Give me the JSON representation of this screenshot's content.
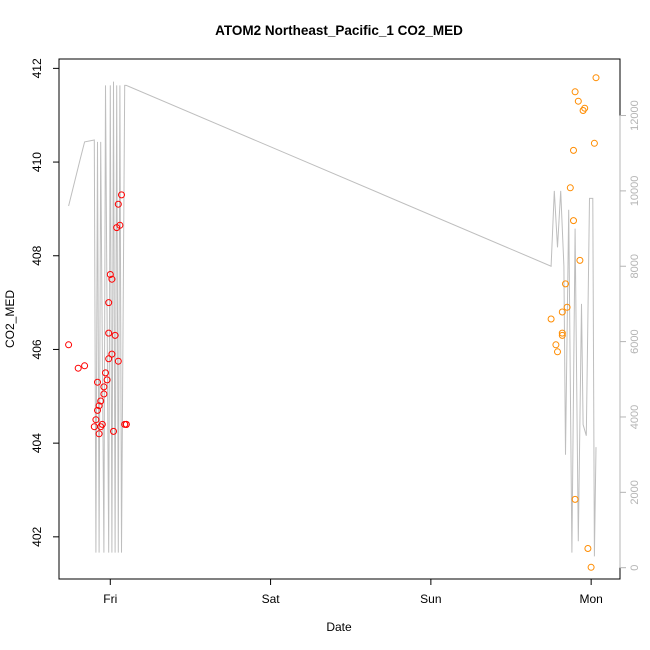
{
  "chart_data": {
    "type": "scatter",
    "title": "ATOM2 Northeast_Pacific_1 CO2_MED",
    "xlabel": "Date",
    "ylabel": "CO2_MED",
    "x_axis": {
      "unit": "days",
      "lim": [
        -0.32,
        3.18
      ],
      "ticks": [
        {
          "value": 0,
          "label": "Fri"
        },
        {
          "value": 1,
          "label": "Sat"
        },
        {
          "value": 2,
          "label": "Sun"
        },
        {
          "value": 3,
          "label": "Mon"
        }
      ]
    },
    "y_axis_left": {
      "lim": [
        401.1,
        412.2
      ],
      "ticks": [
        402,
        404,
        406,
        408,
        410,
        412
      ]
    },
    "y_axis_right": {
      "lim": [
        -300,
        13500
      ],
      "ticks": [
        0,
        2000,
        4000,
        6000,
        8000,
        10000,
        12000
      ],
      "color": "#b4b4b4"
    },
    "series": [
      {
        "color": "#ff0000",
        "marker": "open-circle",
        "x": [
          -0.26,
          -0.2,
          -0.16,
          -0.1,
          -0.09,
          -0.08,
          -0.08,
          -0.07,
          -0.07,
          -0.06,
          -0.06,
          -0.05,
          -0.04,
          -0.04,
          -0.03,
          -0.02,
          -0.01,
          -0.01,
          -0.01,
          0.0,
          0.01,
          0.01,
          0.02,
          0.03,
          0.04,
          0.05,
          0.05,
          0.06,
          0.07,
          0.09,
          0.1,
          0.1
        ],
        "y": [
          406.1,
          405.6,
          405.65,
          404.35,
          404.5,
          404.7,
          405.3,
          404.8,
          404.2,
          404.35,
          404.9,
          404.4,
          405.2,
          405.05,
          405.5,
          405.35,
          405.8,
          406.35,
          407.0,
          407.6,
          407.5,
          405.9,
          404.25,
          406.3,
          408.6,
          409.1,
          405.75,
          408.65,
          409.3,
          404.4,
          404.4,
          404.4
        ]
      },
      {
        "color": "#ff8c00",
        "marker": "open-circle",
        "x": [
          2.75,
          2.78,
          2.79,
          2.82,
          2.82,
          2.82,
          2.84,
          2.85,
          2.87,
          2.89,
          2.89,
          2.9,
          2.9,
          2.92,
          2.93,
          2.95,
          2.96,
          2.98,
          3.0,
          3.02,
          3.03
        ],
        "y": [
          406.65,
          406.1,
          405.95,
          406.3,
          406.35,
          406.8,
          407.4,
          406.9,
          409.45,
          410.25,
          408.75,
          402.8,
          411.5,
          411.3,
          407.9,
          411.1,
          411.15,
          401.75,
          401.35,
          410.4,
          411.8
        ]
      }
    ],
    "secondary_line": {
      "axis": "right",
      "color": "#bebebe",
      "x": [
        -0.26,
        -0.19,
        -0.16,
        -0.1,
        -0.09,
        -0.08,
        -0.07,
        -0.06,
        -0.04,
        -0.03,
        -0.01,
        0.0,
        0.01,
        0.02,
        0.03,
        0.04,
        0.05,
        0.06,
        0.07,
        0.09,
        0.1,
        2.75,
        2.77,
        2.79,
        2.81,
        2.83,
        2.84,
        2.86,
        2.88,
        2.9,
        2.92,
        2.94,
        2.95,
        2.97,
        2.99,
        3.01,
        3.02,
        3.03
      ],
      "y": [
        9600,
        10800,
        11300,
        11350,
        400,
        11300,
        400,
        11300,
        400,
        12800,
        400,
        12800,
        400,
        12900,
        400,
        12800,
        400,
        12800,
        400,
        12800,
        12800,
        8000,
        10000,
        8500,
        10000,
        8000,
        3000,
        9500,
        400,
        9000,
        700,
        7000,
        3800,
        3500,
        9800,
        9800,
        300,
        3200
      ]
    }
  }
}
